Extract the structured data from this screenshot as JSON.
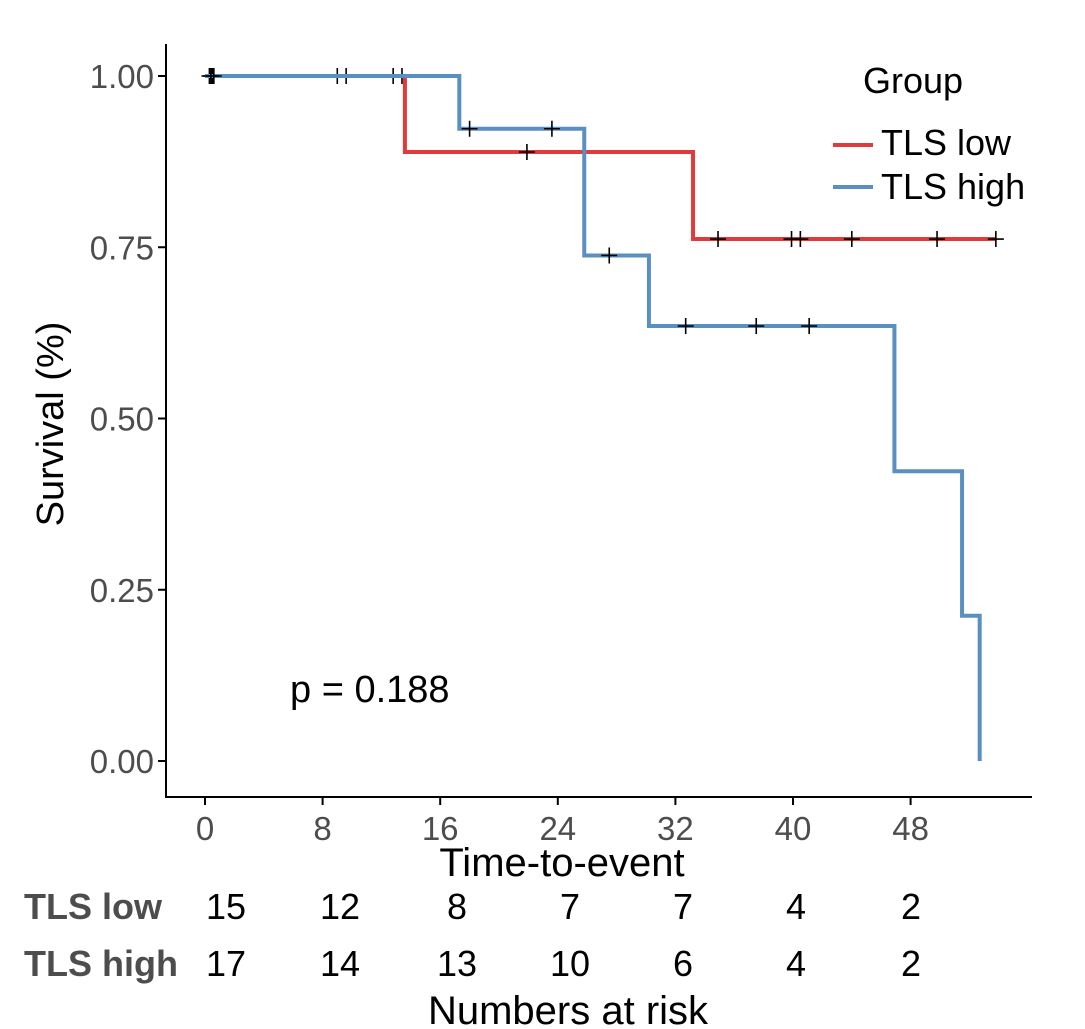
{
  "chart_data": {
    "type": "line",
    "subtype": "kaplan-meier",
    "title": "",
    "xlabel": "Time-to-event",
    "ylabel": "Survival (%)",
    "xlim": [
      -1,
      56
    ],
    "ylim": [
      0,
      1
    ],
    "x_ticks": [
      0,
      8,
      16,
      24,
      32,
      40,
      48
    ],
    "x_tick_labels": [
      "0",
      "8",
      "16",
      "24",
      "32",
      "40",
      "48"
    ],
    "y_ticks": [
      0,
      0.25,
      0.5,
      0.75,
      1.0
    ],
    "y_tick_labels": [
      "0.00",
      "0.25",
      "0.50",
      "0.75",
      "1.00"
    ],
    "legend": {
      "title": "Group",
      "placement": "top-right",
      "entries": [
        "TLS low",
        "TLS high"
      ]
    },
    "annotation": "p = 0.188",
    "series": [
      {
        "name": "TLS low",
        "color": "#e03a3a",
        "steps": [
          [
            0,
            1.0
          ],
          [
            13.6,
            0.889
          ],
          [
            33.2,
            0.762
          ],
          [
            53.8,
            0.762
          ]
        ],
        "censor_times": [
          0.3,
          0.5,
          9.0,
          9.6,
          12.8,
          13.4,
          21.9,
          34.9,
          39.9,
          40.5,
          44.0,
          49.8,
          53.8
        ]
      },
      {
        "name": "TLS high",
        "color": "#5a8fc2",
        "steps": [
          [
            0,
            1.0
          ],
          [
            17.3,
            0.923
          ],
          [
            25.8,
            0.738
          ],
          [
            30.2,
            0.635
          ],
          [
            46.9,
            0.423
          ],
          [
            51.5,
            0.212
          ],
          [
            52.7,
            0.0
          ]
        ],
        "censor_times": [
          0.4,
          0.6,
          18.0,
          23.6,
          27.5,
          32.7,
          37.5,
          41.1
        ]
      }
    ],
    "risk_table": {
      "title": "Numbers at risk",
      "times": [
        0,
        8,
        16,
        24,
        32,
        40,
        48
      ],
      "rows": [
        {
          "group": "TLS low",
          "values": [
            "15",
            "12",
            "8",
            "7",
            "7",
            "4",
            "2"
          ]
        },
        {
          "group": "TLS high",
          "values": [
            "17",
            "14",
            "13",
            "10",
            "6",
            "4",
            "2"
          ]
        }
      ]
    }
  }
}
